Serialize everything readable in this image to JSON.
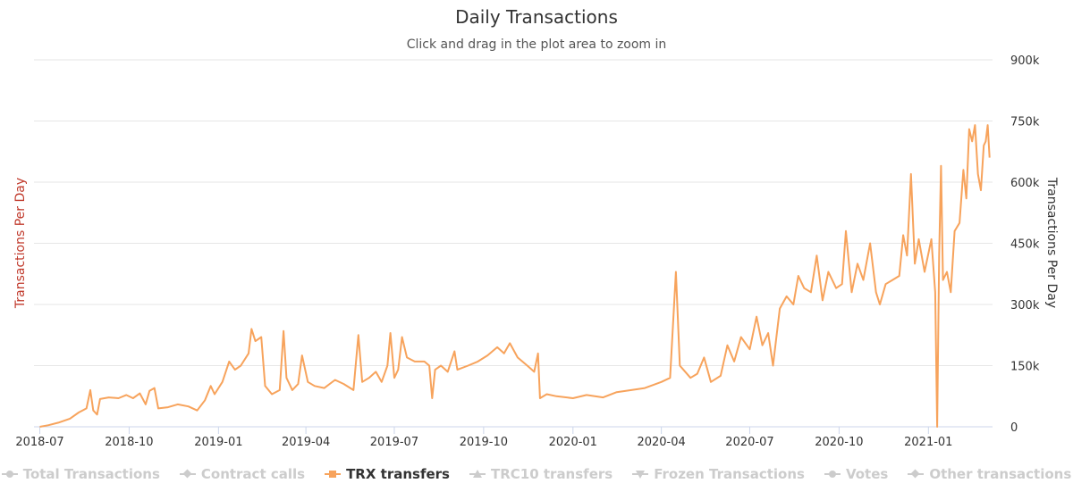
{
  "chart_data": {
    "type": "line",
    "title": "Daily Transactions",
    "subtitle": "Click and drag in the plot area to zoom in",
    "ylabel_left": "Transactions Per Day",
    "ylabel_right": "Transactions Per Day",
    "ylim": [
      0,
      900000
    ],
    "y_ticks": [
      {
        "value": 0,
        "label": "0"
      },
      {
        "value": 150000,
        "label": "150k"
      },
      {
        "value": 300000,
        "label": "300k"
      },
      {
        "value": 450000,
        "label": "450k"
      },
      {
        "value": 600000,
        "label": "600k"
      },
      {
        "value": 750000,
        "label": "750k"
      },
      {
        "value": 900000,
        "label": "900k"
      }
    ],
    "x_range": [
      "2018-06-25",
      "2021-03-08"
    ],
    "x_ticks": [
      "2018-07",
      "2018-10",
      "2019-01",
      "2019-04",
      "2019-07",
      "2019-10",
      "2020-01",
      "2020-04",
      "2020-07",
      "2020-10",
      "2021-01"
    ],
    "grid": true,
    "legend_position": "bottom",
    "series": [
      {
        "name": "TRX transfers",
        "color": "#f7a35c",
        "points": [
          [
            "2018-07-01",
            0
          ],
          [
            "2018-07-10",
            4000
          ],
          [
            "2018-07-20",
            10000
          ],
          [
            "2018-08-01",
            20000
          ],
          [
            "2018-08-10",
            35000
          ],
          [
            "2018-08-18",
            45000
          ],
          [
            "2018-08-22",
            90000
          ],
          [
            "2018-08-25",
            40000
          ],
          [
            "2018-08-29",
            30000
          ],
          [
            "2018-09-01",
            68000
          ],
          [
            "2018-09-10",
            72000
          ],
          [
            "2018-09-20",
            70000
          ],
          [
            "2018-09-28",
            78000
          ],
          [
            "2018-10-05",
            70000
          ],
          [
            "2018-10-12",
            82000
          ],
          [
            "2018-10-18",
            55000
          ],
          [
            "2018-10-22",
            88000
          ],
          [
            "2018-10-27",
            95000
          ],
          [
            "2018-10-31",
            45000
          ],
          [
            "2018-11-10",
            48000
          ],
          [
            "2018-11-20",
            55000
          ],
          [
            "2018-12-01",
            50000
          ],
          [
            "2018-12-10",
            40000
          ],
          [
            "2018-12-18",
            65000
          ],
          [
            "2018-12-24",
            100000
          ],
          [
            "2018-12-28",
            80000
          ],
          [
            "2019-01-05",
            110000
          ],
          [
            "2019-01-12",
            160000
          ],
          [
            "2019-01-18",
            140000
          ],
          [
            "2019-01-24",
            150000
          ],
          [
            "2019-02-01",
            180000
          ],
          [
            "2019-02-04",
            240000
          ],
          [
            "2019-02-08",
            210000
          ],
          [
            "2019-02-14",
            220000
          ],
          [
            "2019-02-18",
            100000
          ],
          [
            "2019-02-25",
            80000
          ],
          [
            "2019-03-05",
            90000
          ],
          [
            "2019-03-09",
            235000
          ],
          [
            "2019-03-12",
            120000
          ],
          [
            "2019-03-18",
            90000
          ],
          [
            "2019-03-24",
            105000
          ],
          [
            "2019-03-28",
            175000
          ],
          [
            "2019-04-03",
            110000
          ],
          [
            "2019-04-10",
            100000
          ],
          [
            "2019-04-20",
            95000
          ],
          [
            "2019-05-01",
            115000
          ],
          [
            "2019-05-10",
            105000
          ],
          [
            "2019-05-20",
            90000
          ],
          [
            "2019-05-25",
            225000
          ],
          [
            "2019-05-29",
            110000
          ],
          [
            "2019-06-05",
            120000
          ],
          [
            "2019-06-12",
            135000
          ],
          [
            "2019-06-18",
            110000
          ],
          [
            "2019-06-24",
            150000
          ],
          [
            "2019-06-27",
            230000
          ],
          [
            "2019-07-01",
            120000
          ],
          [
            "2019-07-05",
            140000
          ],
          [
            "2019-07-09",
            220000
          ],
          [
            "2019-07-14",
            170000
          ],
          [
            "2019-07-22",
            160000
          ],
          [
            "2019-08-01",
            160000
          ],
          [
            "2019-08-06",
            150000
          ],
          [
            "2019-08-09",
            70000
          ],
          [
            "2019-08-12",
            140000
          ],
          [
            "2019-08-18",
            150000
          ],
          [
            "2019-08-25",
            135000
          ],
          [
            "2019-09-01",
            185000
          ],
          [
            "2019-09-04",
            140000
          ],
          [
            "2019-09-15",
            150000
          ],
          [
            "2019-09-25",
            160000
          ],
          [
            "2019-10-05",
            175000
          ],
          [
            "2019-10-15",
            195000
          ],
          [
            "2019-10-22",
            180000
          ],
          [
            "2019-10-28",
            205000
          ],
          [
            "2019-11-05",
            170000
          ],
          [
            "2019-11-15",
            150000
          ],
          [
            "2019-11-22",
            135000
          ],
          [
            "2019-11-26",
            180000
          ],
          [
            "2019-11-28",
            70000
          ],
          [
            "2019-12-05",
            80000
          ],
          [
            "2019-12-15",
            75000
          ],
          [
            "2020-01-01",
            70000
          ],
          [
            "2020-01-15",
            78000
          ],
          [
            "2020-02-01",
            72000
          ],
          [
            "2020-02-15",
            85000
          ],
          [
            "2020-03-01",
            90000
          ],
          [
            "2020-03-15",
            95000
          ],
          [
            "2020-04-01",
            110000
          ],
          [
            "2020-04-10",
            120000
          ],
          [
            "2020-04-16",
            380000
          ],
          [
            "2020-04-20",
            150000
          ],
          [
            "2020-05-01",
            120000
          ],
          [
            "2020-05-08",
            130000
          ],
          [
            "2020-05-15",
            170000
          ],
          [
            "2020-05-22",
            110000
          ],
          [
            "2020-06-01",
            125000
          ],
          [
            "2020-06-08",
            200000
          ],
          [
            "2020-06-15",
            160000
          ],
          [
            "2020-06-22",
            220000
          ],
          [
            "2020-07-01",
            190000
          ],
          [
            "2020-07-08",
            270000
          ],
          [
            "2020-07-14",
            200000
          ],
          [
            "2020-07-20",
            230000
          ],
          [
            "2020-07-25",
            150000
          ],
          [
            "2020-08-01",
            290000
          ],
          [
            "2020-08-08",
            320000
          ],
          [
            "2020-08-15",
            300000
          ],
          [
            "2020-08-20",
            370000
          ],
          [
            "2020-08-26",
            340000
          ],
          [
            "2020-09-02",
            330000
          ],
          [
            "2020-09-08",
            420000
          ],
          [
            "2020-09-14",
            310000
          ],
          [
            "2020-09-20",
            380000
          ],
          [
            "2020-09-28",
            340000
          ],
          [
            "2020-10-04",
            350000
          ],
          [
            "2020-10-08",
            480000
          ],
          [
            "2020-10-14",
            330000
          ],
          [
            "2020-10-20",
            400000
          ],
          [
            "2020-10-26",
            360000
          ],
          [
            "2020-11-02",
            450000
          ],
          [
            "2020-11-08",
            330000
          ],
          [
            "2020-11-12",
            300000
          ],
          [
            "2020-11-18",
            350000
          ],
          [
            "2020-11-25",
            360000
          ],
          [
            "2020-12-02",
            370000
          ],
          [
            "2020-12-06",
            470000
          ],
          [
            "2020-12-10",
            420000
          ],
          [
            "2020-12-14",
            620000
          ],
          [
            "2020-12-18",
            400000
          ],
          [
            "2020-12-22",
            460000
          ],
          [
            "2020-12-28",
            380000
          ],
          [
            "2021-01-04",
            460000
          ],
          [
            "2021-01-08",
            330000
          ],
          [
            "2021-01-10",
            0
          ],
          [
            "2021-01-12",
            420000
          ],
          [
            "2021-01-14",
            640000
          ],
          [
            "2021-01-16",
            360000
          ],
          [
            "2021-01-20",
            380000
          ],
          [
            "2021-01-24",
            330000
          ],
          [
            "2021-01-28",
            480000
          ],
          [
            "2021-02-02",
            500000
          ],
          [
            "2021-02-06",
            630000
          ],
          [
            "2021-02-09",
            560000
          ],
          [
            "2021-02-12",
            730000
          ],
          [
            "2021-02-15",
            700000
          ],
          [
            "2021-02-18",
            740000
          ],
          [
            "2021-02-21",
            620000
          ],
          [
            "2021-02-24",
            580000
          ],
          [
            "2021-02-27",
            690000
          ],
          [
            "2021-03-01",
            700000
          ],
          [
            "2021-03-03",
            740000
          ],
          [
            "2021-03-05",
            660000
          ]
        ]
      }
    ]
  },
  "legend": [
    {
      "label": "Total Transactions",
      "symbol": "circle",
      "active": false
    },
    {
      "label": "Contract calls",
      "symbol": "diamond",
      "active": false
    },
    {
      "label": "TRX transfers",
      "symbol": "square",
      "active": true
    },
    {
      "label": "TRC10 transfers",
      "symbol": "triangle",
      "active": false
    },
    {
      "label": "Frozen Transactions",
      "symbol": "triangle-down",
      "active": false
    },
    {
      "label": "Votes",
      "symbol": "circle",
      "active": false
    },
    {
      "label": "Other transactions",
      "symbol": "diamond",
      "active": false
    }
  ],
  "colors": {
    "series": "#f7a35c",
    "left_axis_title": "#c0392b",
    "grid": "#e6e6e6",
    "inactive_legend": "#cccccc"
  }
}
